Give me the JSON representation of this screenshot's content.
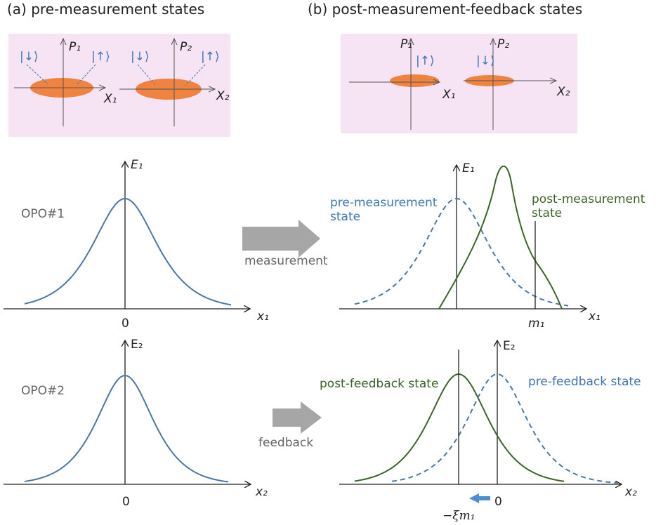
{
  "titles": {
    "a": "(a) pre-measurement states",
    "b": "(b) post-measurement-feedback states"
  },
  "phase_a": {
    "down1": "|↓⟩",
    "p1": "P₁",
    "up1": "|↑⟩",
    "x1": "X₁",
    "down2": "|↓⟩",
    "p2": "P₂",
    "up2": "|↑⟩",
    "x2": "X₂"
  },
  "phase_b": {
    "p1": "P₁",
    "up1": "|↑⟩",
    "x1": "X₁",
    "down2": "|↓⟩",
    "p2": "P₂",
    "x2": "X₂"
  },
  "opo1": {
    "name": "OPO#1",
    "e": "E₁",
    "zero": "0",
    "x": "x₁"
  },
  "measurement": "measurement",
  "opo1_after": {
    "e": "E₁",
    "pre": [
      "pre-measurement",
      "state"
    ],
    "post": [
      "post-measurement",
      "state"
    ],
    "m": "m₁",
    "x": "x₁"
  },
  "opo2": {
    "name": "OPO#2",
    "e": "E₂",
    "zero": "0",
    "x": "x₂"
  },
  "feedback": "feedback",
  "opo2_after": {
    "e": "E₂",
    "post": "post-feedback state",
    "pre": "pre-feedback state",
    "zero": "0",
    "shift": "−ξm₁",
    "x": "x₂"
  }
}
